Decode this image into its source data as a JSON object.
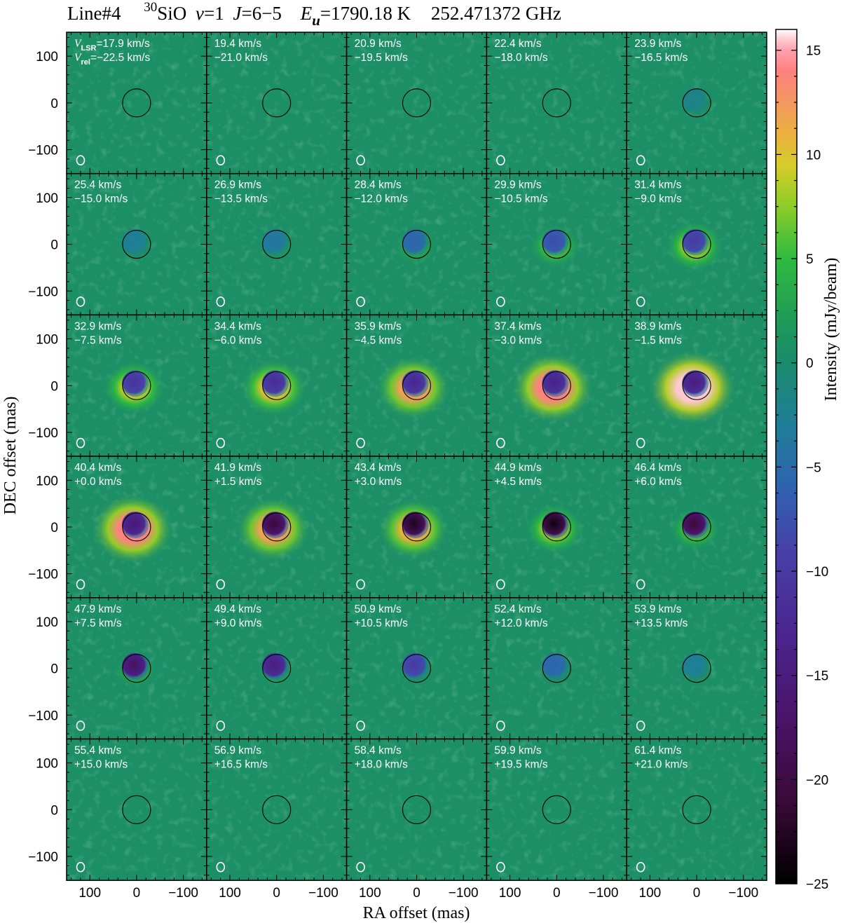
{
  "chart_data": {
    "type": "heatmap",
    "title": {
      "line": "Line#4",
      "isotope_sup": "30",
      "molecule": "SiO",
      "v_sym": "v",
      "v_val": "=1",
      "j_sym": "J",
      "j_val": "=6−5",
      "e_sym": "E",
      "e_sub": "u",
      "e_val": "=1790.18 K",
      "freq": "252.471372 GHz"
    },
    "xlabel": "RA offset (mas)",
    "ylabel": "DEC offset (mas)",
    "xlim": [
      150,
      -150
    ],
    "ylim": [
      -150,
      150
    ],
    "x_ticks": [
      "100",
      "0",
      "−100"
    ],
    "x_tick_values": [
      100,
      0,
      -100
    ],
    "y_ticks": [
      "100",
      "0",
      "−100"
    ],
    "y_tick_values": [
      100,
      0,
      -100
    ],
    "colorbar": {
      "label": "Intensity (mJy/beam)",
      "range": [
        -25,
        16
      ],
      "ticks": [
        "15",
        "10",
        "5",
        "0",
        "−5",
        "−10",
        "−15",
        "−20",
        "−25"
      ],
      "tick_values": [
        15,
        10,
        5,
        0,
        -5,
        -10,
        -15,
        -20,
        -25
      ],
      "stops": [
        [
          -25,
          "#000000"
        ],
        [
          -21,
          "#3a0a38"
        ],
        [
          -17,
          "#4a146a"
        ],
        [
          -13,
          "#4b2590"
        ],
        [
          -9,
          "#4840a8"
        ],
        [
          -6,
          "#2f62b0"
        ],
        [
          -3,
          "#1f7e98"
        ],
        [
          0,
          "#1a8a6c"
        ],
        [
          2,
          "#1f9a58"
        ],
        [
          5,
          "#2fba40"
        ],
        [
          7.5,
          "#8ccc28"
        ],
        [
          9.5,
          "#d8cc2a"
        ],
        [
          11,
          "#ecb040"
        ],
        [
          12.5,
          "#f29860"
        ],
        [
          14,
          "#ff8080"
        ],
        [
          15,
          "#ffa0ac"
        ],
        [
          15.6,
          "#ffd0d8"
        ],
        [
          16,
          "#ffffff"
        ]
      ]
    },
    "first_label": {
      "v": "V",
      "lsr": "LSR",
      "rel": "rel"
    },
    "units": "km/s",
    "channels": [
      {
        "vlsr": "17.9",
        "vrel": "−22.5",
        "absorption": 0,
        "emission": 0
      },
      {
        "vlsr": "19.4",
        "vrel": "−21.0",
        "absorption": 0,
        "emission": 0
      },
      {
        "vlsr": "20.9",
        "vrel": "−19.5",
        "absorption": 0,
        "emission": 0
      },
      {
        "vlsr": "22.4",
        "vrel": "−18.0",
        "absorption": 0,
        "emission": 0
      },
      {
        "vlsr": "23.9",
        "vrel": "−16.5",
        "absorption": -2,
        "emission": 0
      },
      {
        "vlsr": "25.4",
        "vrel": "−15.0",
        "absorption": -3,
        "emission": 1
      },
      {
        "vlsr": "26.9",
        "vrel": "−13.5",
        "absorption": -4,
        "emission": 2
      },
      {
        "vlsr": "28.4",
        "vrel": "−12.0",
        "absorption": -6,
        "emission": 4
      },
      {
        "vlsr": "29.9",
        "vrel": "−10.5",
        "absorption": -8,
        "emission": 6
      },
      {
        "vlsr": "31.4",
        "vrel": "−9.0",
        "absorption": -10,
        "emission": 8
      },
      {
        "vlsr": "32.9",
        "vrel": "−7.5",
        "absorption": -11,
        "emission": 9
      },
      {
        "vlsr": "34.4",
        "vrel": "−6.0",
        "absorption": -12,
        "emission": 10
      },
      {
        "vlsr": "35.9",
        "vrel": "−4.5",
        "absorption": -13,
        "emission": 12
      },
      {
        "vlsr": "37.4",
        "vrel": "−3.0",
        "absorption": -14,
        "emission": 14
      },
      {
        "vlsr": "38.9",
        "vrel": "−1.5",
        "absorption": -15,
        "emission": 15.5
      },
      {
        "vlsr": "40.4",
        "vrel": "+0.0",
        "absorption": -16,
        "emission": 14
      },
      {
        "vlsr": "41.9",
        "vrel": "+1.5",
        "absorption": -21,
        "emission": 12
      },
      {
        "vlsr": "43.4",
        "vrel": "+3.0",
        "absorption": -23,
        "emission": 11
      },
      {
        "vlsr": "44.9",
        "vrel": "+4.5",
        "absorption": -24,
        "emission": 8
      },
      {
        "vlsr": "46.4",
        "vrel": "+6.0",
        "absorption": -21,
        "emission": 6
      },
      {
        "vlsr": "47.9",
        "vrel": "+7.5",
        "absorption": -18,
        "emission": 4
      },
      {
        "vlsr": "49.4",
        "vrel": "+9.0",
        "absorption": -15,
        "emission": 3
      },
      {
        "vlsr": "50.9",
        "vrel": "+10.5",
        "absorption": -10,
        "emission": 1.5
      },
      {
        "vlsr": "52.4",
        "vrel": "+12.0",
        "absorption": -6,
        "emission": 0.5
      },
      {
        "vlsr": "53.9",
        "vrel": "+13.5",
        "absorption": -3,
        "emission": 0
      },
      {
        "vlsr": "55.4",
        "vrel": "+15.0",
        "absorption": 0,
        "emission": 0
      },
      {
        "vlsr": "56.9",
        "vrel": "+16.5",
        "absorption": 0,
        "emission": 0
      },
      {
        "vlsr": "58.4",
        "vrel": "+18.0",
        "absorption": 0,
        "emission": 0
      },
      {
        "vlsr": "59.9",
        "vrel": "+19.5",
        "absorption": 0,
        "emission": 0
      },
      {
        "vlsr": "61.4",
        "vrel": "+21.0",
        "absorption": 0,
        "emission": 0
      }
    ],
    "grid": false
  }
}
